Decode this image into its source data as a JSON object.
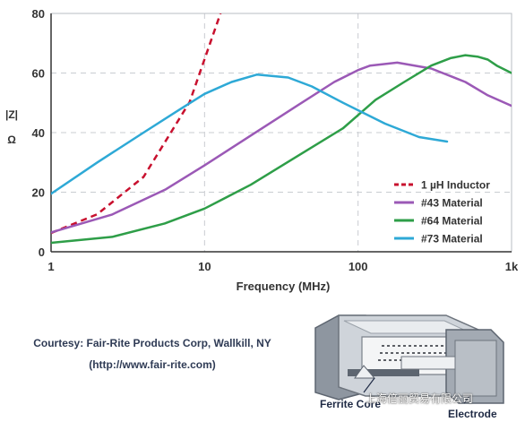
{
  "chart_data": {
    "type": "line",
    "title": "",
    "xlabel": "Frequency (MHz)",
    "ylabel": "|Z| Ω",
    "ylabel_parts": [
      "|Z|",
      "Ω"
    ],
    "x_scale": "log",
    "xlim": [
      1,
      1000
    ],
    "ylim": [
      0,
      80
    ],
    "x_ticks": [
      1,
      10,
      100,
      1000
    ],
    "x_tick_labels": [
      "1",
      "10",
      "100",
      "1k"
    ],
    "y_ticks": [
      0,
      20,
      40,
      60,
      80
    ],
    "y_tick_labels": [
      "0",
      "20",
      "40",
      "60",
      "80"
    ],
    "grid": true,
    "legend_position": "bottom-right",
    "series": [
      {
        "name": "1 µH Inductor",
        "color": "#c8102e",
        "dashed": true,
        "x": [
          1,
          2,
          4,
          8,
          12.7
        ],
        "y": [
          6.3,
          12.6,
          25.1,
          50.3,
          80
        ]
      },
      {
        "name": "#43 Material",
        "color": "#9b59b6",
        "dashed": false,
        "x": [
          1,
          2.5,
          5.6,
          10,
          20,
          40,
          70,
          100,
          120,
          180,
          300,
          500,
          700,
          1000
        ],
        "y": [
          6.5,
          12.5,
          21,
          29,
          39,
          49,
          57,
          61,
          62.5,
          63.5,
          61.5,
          57,
          52.5,
          49
        ]
      },
      {
        "name": "#64 Material",
        "color": "#2e9e48",
        "dashed": false,
        "x": [
          1,
          2.5,
          5.5,
          10,
          20,
          40,
          80,
          130,
          200,
          300,
          400,
          500,
          600,
          700,
          800,
          1000
        ],
        "y": [
          3,
          5,
          9.5,
          14.5,
          22.5,
          32,
          41.5,
          51,
          57,
          62.5,
          65,
          66,
          65.5,
          64.5,
          62.5,
          60
        ]
      },
      {
        "name": "#73 Material",
        "color": "#2ea9d6",
        "dashed": false,
        "x": [
          1,
          2,
          4,
          7,
          10,
          15,
          22,
          35,
          50,
          80,
          150,
          250,
          380
        ],
        "y": [
          19.5,
          30,
          40,
          48,
          53,
          57,
          59.5,
          58.5,
          55.5,
          50,
          43,
          38.5,
          37
        ]
      }
    ]
  },
  "courtesy": {
    "line1": "Courtesy: Fair-Rite Products Corp, Wallkill, NY",
    "line2": "(http://www.fair-rite.com)"
  },
  "illustration": {
    "ferrite_label": "Ferrite Core",
    "electrode_label": "Electrode"
  },
  "watermark": "上海倍丽贸易有限公司"
}
